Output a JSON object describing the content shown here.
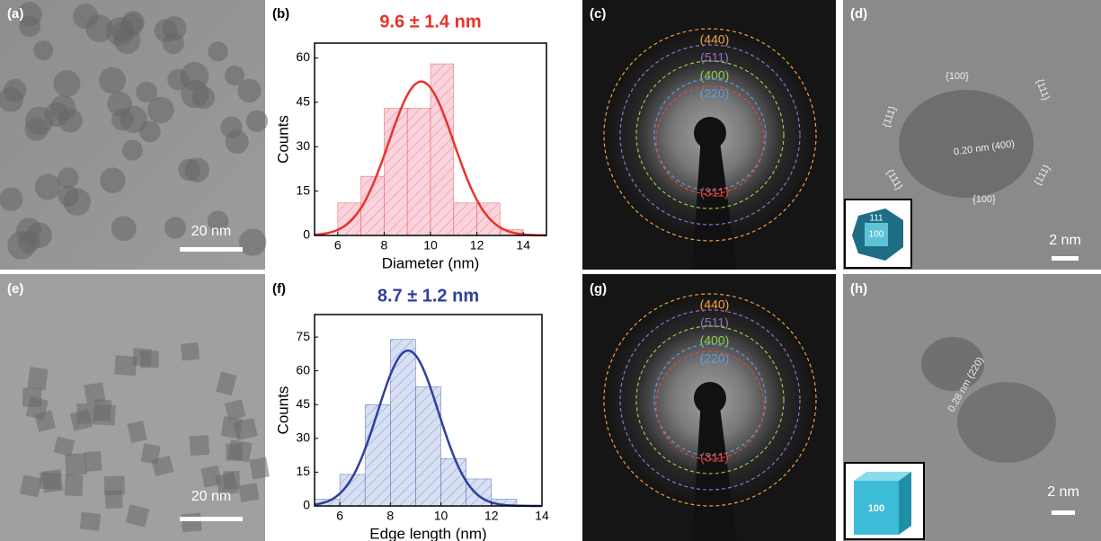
{
  "chart_data": [
    {
      "type": "histogram",
      "title": "9.6 ± 1.4 nm",
      "xlabel": "Diameter (nm)",
      "ylabel": "Counts",
      "bins": [
        6,
        7,
        8,
        9,
        10,
        11,
        12,
        13,
        14
      ],
      "counts": [
        11,
        20,
        43,
        43,
        58,
        11,
        11,
        2
      ],
      "xlim": [
        5,
        15
      ],
      "ylim": [
        0,
        65
      ],
      "xticks": [
        6,
        8,
        10,
        12,
        14
      ],
      "yticks": [
        0,
        15,
        30,
        45,
        60
      ],
      "color": "#e8322a",
      "fill": "#f9d3de",
      "fit": {
        "mean": 9.6,
        "sd": 1.4,
        "peak": 52
      }
    },
    {
      "type": "histogram",
      "title": "8.7 ± 1.2 nm",
      "xlabel": "Edge length (nm)",
      "ylabel": "Counts",
      "bins": [
        5,
        6,
        7,
        8,
        9,
        10,
        11,
        12,
        13
      ],
      "counts": [
        3,
        14,
        45,
        74,
        53,
        21,
        12,
        3
      ],
      "xlim": [
        5,
        14
      ],
      "ylim": [
        0,
        85
      ],
      "xticks": [
        6,
        8,
        10,
        12,
        14
      ],
      "yticks": [
        0,
        15,
        30,
        45,
        60,
        75
      ],
      "color": "#2e3f9e",
      "fill": "#d6e0f2",
      "fit": {
        "mean": 8.7,
        "sd": 1.2,
        "peak": 69
      }
    }
  ],
  "panels": {
    "labels": [
      "(a)",
      "(b)",
      "(c)",
      "(d)",
      "(e)",
      "(f)",
      "(g)",
      "(h)"
    ],
    "scale_bars": [
      "20 nm",
      "2 nm",
      "20 nm",
      "2 nm"
    ],
    "rings_c": [
      "(440)",
      "(511)",
      "(400)",
      "(220)",
      "(311)"
    ],
    "rings_g": [
      "(440)",
      "(511)",
      "(400)",
      "(220)",
      "(311)"
    ],
    "d_annotations": [
      "{100}",
      "{111}",
      "{111}",
      "0.20 nm (400)",
      "{111}",
      "{111}",
      "{100}"
    ],
    "d_inset": [
      "111",
      "100"
    ],
    "h_annotation": "0.28 nm (220)",
    "h_inset": "100"
  }
}
